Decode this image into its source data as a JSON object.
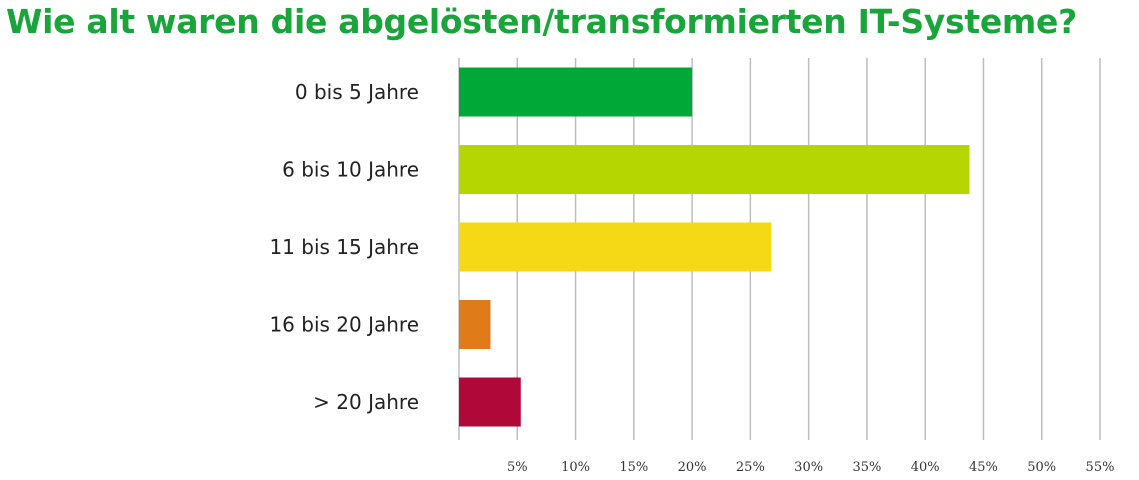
{
  "chart_data": {
    "type": "bar",
    "orientation": "horizontal",
    "title": "Wie alt waren die abgelösten/transformierten IT-Systeme?",
    "categories": [
      "0 bis 5 Jahre",
      "6 bis 10 Jahre",
      "11 bis 15 Jahre",
      "16 bis 20 Jahre",
      "> 20 Jahre"
    ],
    "values": [
      20,
      43.8,
      26.8,
      2.7,
      5.3
    ],
    "colors": [
      "#00a838",
      "#b5d600",
      "#f5d816",
      "#e07b1a",
      "#b00838"
    ],
    "xlim": [
      0,
      55
    ],
    "ticks": [
      5,
      10,
      15,
      20,
      25,
      30,
      35,
      40,
      45,
      50,
      55
    ],
    "tick_labels": [
      "5%",
      "10%",
      "15%",
      "20%",
      "25%",
      "30%",
      "35%",
      "40%",
      "45%",
      "50%",
      "55%"
    ],
    "grid": true,
    "xlabel": "",
    "ylabel": ""
  }
}
